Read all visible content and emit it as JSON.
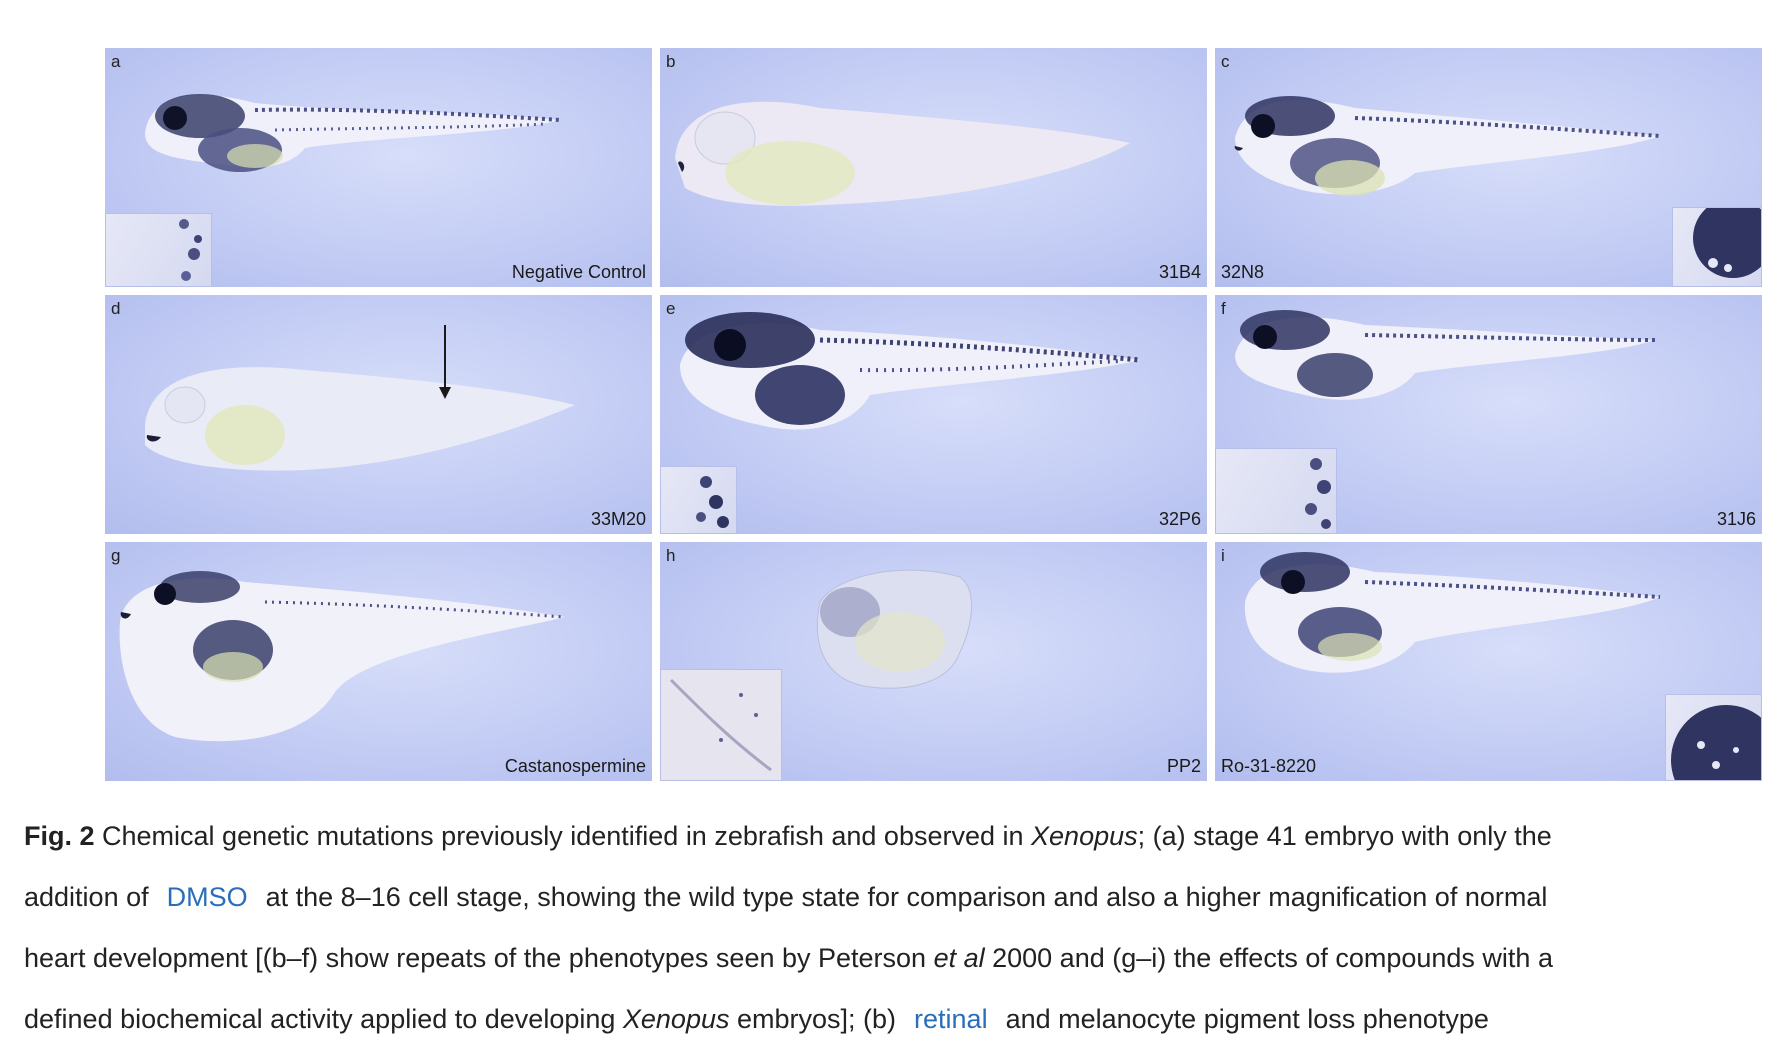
{
  "figure": {
    "panels": [
      {
        "label": "a",
        "compound": "Negative Control"
      },
      {
        "label": "b",
        "compound": "31B4"
      },
      {
        "label": "c",
        "compound": "32N8"
      },
      {
        "label": "d",
        "compound": "33M20"
      },
      {
        "label": "e",
        "compound": "32P6"
      },
      {
        "label": "f",
        "compound": "31J6"
      },
      {
        "label": "g",
        "compound": "Castanospermine"
      },
      {
        "label": "h",
        "compound": "PP2"
      },
      {
        "label": "i",
        "compound": "Ro-31-8220"
      }
    ]
  },
  "caption": {
    "fig_label": "Fig. 2",
    "line1_a": " Chemical genetic mutations previously identified in zebrafish and observed in ",
    "line1_italic": "Xenopus",
    "line1_b": "; (a) stage 41 embryo with only the",
    "line2_a": "addition of",
    "link_dmso": "DMSO",
    "line2_b": "at the 8–16 cell stage, showing the wild type state for comparison and also a higher magnification of normal",
    "line3_a": "heart development [(b–f) show repeats of the phenotypes seen by Peterson ",
    "line3_italic": "et al",
    "line3_b": " 2000 and (g–i) the effects of compounds with a",
    "line4_a": "defined biochemical activity applied to developing ",
    "line4_italic": "Xenopus",
    "line4_b": " embryos]; (b)",
    "link_retinal": "retinal",
    "line4_c": "and melanocyte pigment loss phenotype"
  }
}
